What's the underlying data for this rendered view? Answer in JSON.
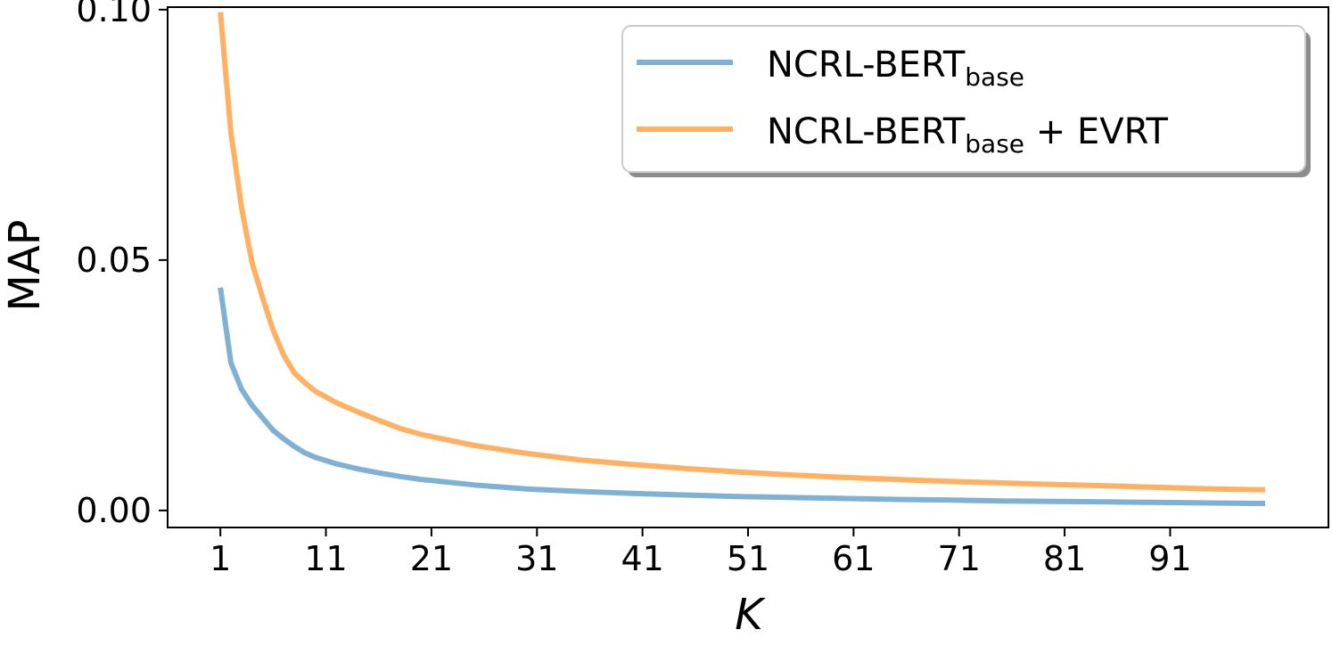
{
  "chart_data": {
    "type": "line",
    "title": "",
    "xlabel": "K",
    "ylabel": "MAP",
    "xlim": [
      -4,
      106
    ],
    "ylim": [
      -0.0034,
      0.1005
    ],
    "xticks": [
      1,
      11,
      21,
      31,
      41,
      51,
      61,
      71,
      81,
      91
    ],
    "xtick_labels": [
      "1",
      "11",
      "21",
      "31",
      "41",
      "51",
      "61",
      "71",
      "81",
      "91"
    ],
    "yticks": [
      0.0,
      0.05,
      0.1
    ],
    "ytick_labels": [
      "0.00",
      "0.05",
      "0.10"
    ],
    "grid": false,
    "legend_position": "top-right",
    "x": [
      1,
      2,
      3,
      4,
      5,
      6,
      7,
      8,
      9,
      10,
      12,
      14,
      16,
      18,
      20,
      25,
      30,
      35,
      40,
      45,
      50,
      55,
      60,
      65,
      70,
      75,
      80,
      85,
      90,
      95,
      100
    ],
    "series": [
      {
        "name_main": "NCRL-BERT",
        "name_sub": "base",
        "name_suffix": "",
        "color": "#7fb1d4",
        "values": [
          0.0445,
          0.0295,
          0.0242,
          0.021,
          0.0185,
          0.016,
          0.0143,
          0.0128,
          0.0115,
          0.0106,
          0.0093,
          0.0083,
          0.0075,
          0.0068,
          0.0062,
          0.0051,
          0.0043,
          0.0038,
          0.0034,
          0.0031,
          0.0028,
          0.0026,
          0.0024,
          0.0022,
          0.0021,
          0.0019,
          0.0018,
          0.0017,
          0.0016,
          0.0015,
          0.0014
        ]
      },
      {
        "name_main": "NCRL-BERT",
        "name_sub": "base",
        "name_suffix": " + EVRT",
        "color": "#ffb061",
        "values": [
          0.0995,
          0.0755,
          0.0605,
          0.0495,
          0.0425,
          0.036,
          0.031,
          0.0275,
          0.0255,
          0.0238,
          0.0215,
          0.0197,
          0.018,
          0.0164,
          0.0152,
          0.013,
          0.0114,
          0.0101,
          0.0092,
          0.0084,
          0.0077,
          0.0071,
          0.0066,
          0.0062,
          0.0058,
          0.0055,
          0.0052,
          0.0049,
          0.0046,
          0.0043,
          0.0041
        ]
      }
    ]
  }
}
